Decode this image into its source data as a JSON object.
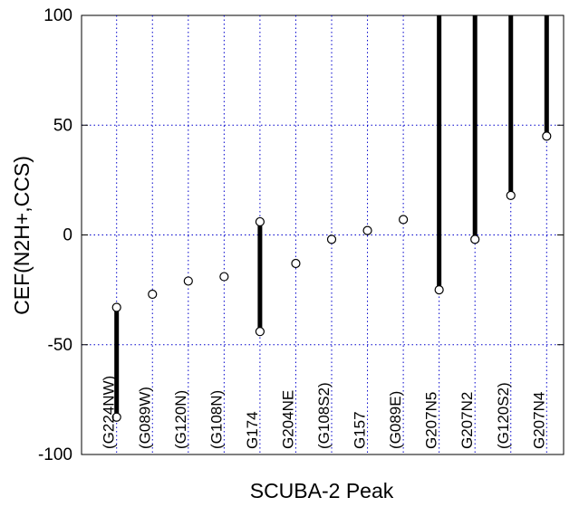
{
  "chart_data": {
    "type": "scatter",
    "xlabel": "SCUBA-2 Peak",
    "ylabel": "CEF(N2H+,CCS)",
    "ylim": [
      -100,
      100
    ],
    "yticks": [
      -100,
      -50,
      0,
      50,
      100
    ],
    "grid": true,
    "grid_color": "#0000cc",
    "point_color": "#000000",
    "categories": [
      "(G224NW)",
      "(G089W)",
      "(G120N)",
      "(G108N)",
      "G174",
      "G204NE",
      "(G108S2)",
      "G157",
      "(G089E)",
      "G207N5",
      "G207N2",
      "(G120S2)",
      "G207N4"
    ],
    "points": [
      {
        "x": 1,
        "y": -33
      },
      {
        "x": 1,
        "y": -83
      },
      {
        "x": 2,
        "y": -27
      },
      {
        "x": 3,
        "y": -21
      },
      {
        "x": 4,
        "y": -19
      },
      {
        "x": 5,
        "y": 6
      },
      {
        "x": 5,
        "y": -44
      },
      {
        "x": 6,
        "y": -13
      },
      {
        "x": 7,
        "y": -2
      },
      {
        "x": 8,
        "y": 2
      },
      {
        "x": 9,
        "y": 7
      },
      {
        "x": 10,
        "y": -25
      },
      {
        "x": 11,
        "y": -2
      },
      {
        "x": 12,
        "y": 18
      },
      {
        "x": 13,
        "y": 45
      }
    ],
    "range_bars": [
      {
        "x": 1,
        "y_low": -83,
        "y_high": -33
      },
      {
        "x": 5,
        "y_low": -44,
        "y_high": 6
      },
      {
        "x": 10,
        "y_low": -25,
        "y_high": 100
      },
      {
        "x": 11,
        "y_low": -2,
        "y_high": 100
      },
      {
        "x": 12,
        "y_low": 18,
        "y_high": 100
      },
      {
        "x": 13,
        "y_low": 45,
        "y_high": 100
      }
    ]
  }
}
